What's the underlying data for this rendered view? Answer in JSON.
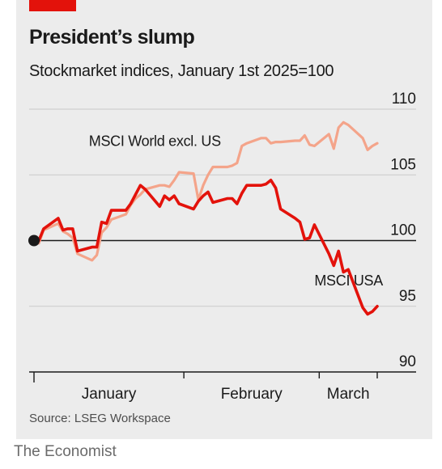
{
  "header": {
    "title": "President’s slump",
    "subtitle": "Stockmarket indices, January 1st 2025=100"
  },
  "footer": {
    "source": "Source: LSEG Workspace",
    "brand": "The Economist"
  },
  "colors": {
    "brand_red": "#e3120b",
    "usa": "#e3120b",
    "world": "#f4a48a",
    "background": "#ececec"
  },
  "chart_data": {
    "type": "line",
    "title": "President’s slump",
    "subtitle": "Stockmarket indices, January 1st 2025=100",
    "xlabel": "",
    "ylabel": "",
    "x_tick_labels": [
      "January",
      "February",
      "March"
    ],
    "y_tick_labels": [
      "90",
      "95",
      "100",
      "105",
      "110"
    ],
    "y_ticks": [
      90,
      95,
      100,
      105,
      110
    ],
    "ylim": [
      90,
      110
    ],
    "xlim": [
      "2025-01-01",
      "2025-03-14"
    ],
    "month_boundaries": [
      "2025-01-01",
      "2025-02-01",
      "2025-03-01",
      "2025-03-13"
    ],
    "grid": true,
    "baseline": 100,
    "start_marker": {
      "x": "2025-01-01",
      "y": 100
    },
    "series": [
      {
        "name": "MSCI USA",
        "x": [
          "2025-01-01",
          "2025-01-02",
          "2025-01-03",
          "2025-01-06",
          "2025-01-07",
          "2025-01-08",
          "2025-01-09",
          "2025-01-10",
          "2025-01-13",
          "2025-01-14",
          "2025-01-15",
          "2025-01-16",
          "2025-01-17",
          "2025-01-20",
          "2025-01-21",
          "2025-01-22",
          "2025-01-23",
          "2025-01-24",
          "2025-01-27",
          "2025-01-28",
          "2025-01-29",
          "2025-01-30",
          "2025-01-31",
          "2025-02-03",
          "2025-02-04",
          "2025-02-05",
          "2025-02-06",
          "2025-02-07",
          "2025-02-10",
          "2025-02-11",
          "2025-02-12",
          "2025-02-13",
          "2025-02-14",
          "2025-02-17",
          "2025-02-18",
          "2025-02-19",
          "2025-02-20",
          "2025-02-21",
          "2025-02-24",
          "2025-02-25",
          "2025-02-26",
          "2025-02-27",
          "2025-02-28",
          "2025-03-03",
          "2025-03-04",
          "2025-03-05",
          "2025-03-06",
          "2025-03-07",
          "2025-03-10",
          "2025-03-11",
          "2025-03-12",
          "2025-03-13"
        ],
        "values": [
          100.0,
          100.0,
          100.9,
          101.7,
          100.8,
          100.9,
          100.9,
          99.2,
          99.5,
          99.5,
          101.4,
          101.3,
          102.3,
          102.3,
          102.8,
          103.5,
          104.2,
          103.9,
          102.6,
          103.4,
          103.1,
          103.4,
          102.8,
          102.4,
          103.0,
          103.4,
          103.7,
          102.9,
          103.2,
          103.2,
          102.8,
          103.6,
          104.2,
          104.2,
          104.3,
          104.6,
          104.0,
          102.4,
          101.7,
          101.4,
          100.1,
          100.2,
          101.2,
          99.0,
          98.1,
          99.2,
          97.6,
          97.8,
          94.9,
          94.4,
          94.6,
          95.0
        ]
      },
      {
        "name": "MSCI World excl. US",
        "x": [
          "2025-01-01",
          "2025-01-02",
          "2025-01-03",
          "2025-01-06",
          "2025-01-07",
          "2025-01-08",
          "2025-01-09",
          "2025-01-10",
          "2025-01-13",
          "2025-01-14",
          "2025-01-15",
          "2025-01-16",
          "2025-01-17",
          "2025-01-20",
          "2025-01-21",
          "2025-01-22",
          "2025-01-23",
          "2025-01-24",
          "2025-01-27",
          "2025-01-28",
          "2025-01-29",
          "2025-01-30",
          "2025-01-31",
          "2025-02-03",
          "2025-02-04",
          "2025-02-05",
          "2025-02-06",
          "2025-02-07",
          "2025-02-10",
          "2025-02-11",
          "2025-02-12",
          "2025-02-13",
          "2025-02-14",
          "2025-02-17",
          "2025-02-18",
          "2025-02-19",
          "2025-02-20",
          "2025-02-21",
          "2025-02-24",
          "2025-02-25",
          "2025-02-26",
          "2025-02-27",
          "2025-02-28",
          "2025-03-03",
          "2025-03-04",
          "2025-03-05",
          "2025-03-06",
          "2025-03-07",
          "2025-03-10",
          "2025-03-11",
          "2025-03-12",
          "2025-03-13"
        ],
        "values": [
          100.0,
          99.8,
          100.8,
          101.3,
          100.7,
          100.5,
          100.2,
          99.0,
          98.5,
          98.9,
          100.6,
          101.0,
          101.6,
          102.0,
          102.7,
          103.2,
          103.5,
          103.9,
          104.2,
          104.2,
          104.1,
          104.6,
          105.2,
          105.1,
          103.1,
          104.2,
          105.0,
          105.6,
          105.6,
          105.7,
          105.9,
          107.2,
          107.4,
          107.8,
          107.8,
          107.4,
          107.5,
          107.5,
          107.6,
          107.6,
          108.0,
          107.3,
          107.2,
          108.1,
          107.0,
          108.6,
          109.0,
          108.8,
          107.8,
          106.9,
          107.2,
          107.4
        ]
      }
    ],
    "annotations": [
      {
        "text": "MSCI World excl. US",
        "series": "MSCI World excl. US",
        "x": "2025-01-26",
        "y": 107.2
      },
      {
        "text": "MSCI USA",
        "series": "MSCI USA",
        "x": "2025-02-28",
        "y": 96.6
      }
    ]
  }
}
